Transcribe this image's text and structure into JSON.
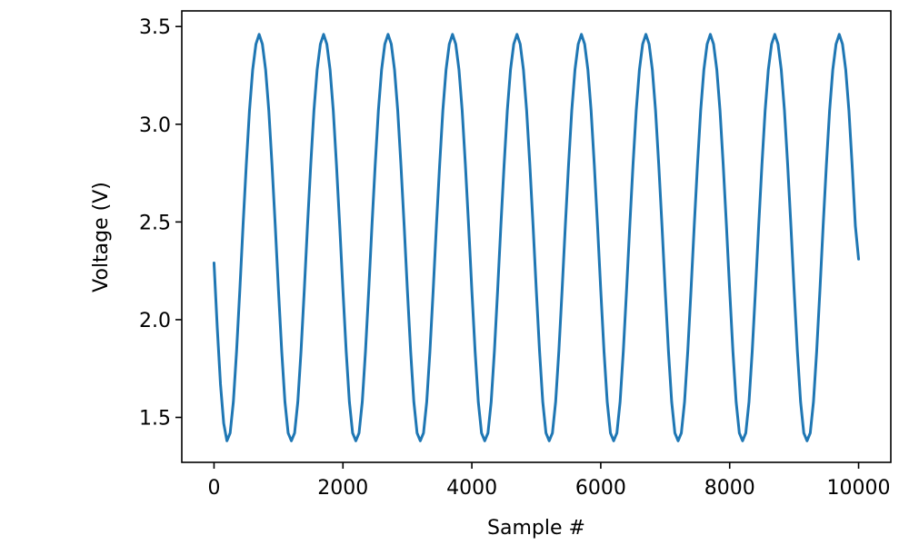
{
  "chart_data": {
    "type": "line",
    "title": "",
    "xlabel": "Sample #",
    "ylabel": "Voltage (V)",
    "xlim": [
      -500,
      10500
    ],
    "ylim": [
      1.27,
      3.58
    ],
    "x_ticks": [
      0,
      2000,
      4000,
      6000,
      8000,
      10000
    ],
    "x_tick_labels": [
      "0",
      "2000",
      "4000",
      "6000",
      "8000",
      "10000"
    ],
    "y_ticks": [
      1.5,
      2.0,
      2.5,
      3.0,
      3.5
    ],
    "y_tick_labels": [
      "1.5",
      "2.0",
      "2.5",
      "3.0",
      "3.5"
    ],
    "grid": false,
    "legend": "none",
    "series": [
      {
        "color": "#1f77b4",
        "x": [
          0,
          50,
          100,
          150,
          200,
          250,
          300,
          350,
          400,
          450,
          500,
          550,
          600,
          650,
          700,
          750,
          800,
          850,
          900,
          950,
          1000,
          1050,
          1100,
          1150,
          1200,
          1250,
          1300,
          1350,
          1400,
          1450,
          1500,
          1550,
          1600,
          1650,
          1700,
          1750,
          1800,
          1850,
          1900,
          1950,
          2000,
          2050,
          2100,
          2150,
          2200,
          2250,
          2300,
          2350,
          2400,
          2450,
          2500,
          2550,
          2600,
          2650,
          2700,
          2750,
          2800,
          2850,
          2900,
          2950,
          3000,
          3050,
          3100,
          3150,
          3200,
          3250,
          3300,
          3350,
          3400,
          3450,
          3500,
          3550,
          3600,
          3650,
          3700,
          3750,
          3800,
          3850,
          3900,
          3950,
          4000,
          4050,
          4100,
          4150,
          4200,
          4250,
          4300,
          4350,
          4400,
          4450,
          4500,
          4550,
          4600,
          4650,
          4700,
          4750,
          4800,
          4850,
          4900,
          4950,
          5000,
          5050,
          5100,
          5150,
          5200,
          5250,
          5300,
          5350,
          5400,
          5450,
          5500,
          5550,
          5600,
          5650,
          5700,
          5750,
          5800,
          5850,
          5900,
          5950,
          6000,
          6050,
          6100,
          6150,
          6200,
          6250,
          6300,
          6350,
          6400,
          6450,
          6500,
          6550,
          6600,
          6650,
          6700,
          6750,
          6800,
          6850,
          6900,
          6950,
          7000,
          7050,
          7100,
          7150,
          7200,
          7250,
          7300,
          7350,
          7400,
          7450,
          7500,
          7550,
          7600,
          7650,
          7700,
          7750,
          7800,
          7850,
          7900,
          7950,
          8000,
          8050,
          8100,
          8150,
          8200,
          8250,
          8300,
          8350,
          8400,
          8450,
          8500,
          8550,
          8600,
          8650,
          8700,
          8750,
          8800,
          8850,
          8900,
          8950,
          9000,
          9050,
          9100,
          9150,
          9200,
          9250,
          9300,
          9350,
          9400,
          9450,
          9500,
          9550,
          9600,
          9650,
          9700,
          9750,
          9800,
          9850,
          9900,
          9950,
          10000
        ],
        "values": [
          2.29,
          1.96,
          1.67,
          1.47,
          1.38,
          1.42,
          1.58,
          1.84,
          2.15,
          2.48,
          2.79,
          3.07,
          3.28,
          3.41,
          3.46,
          3.41,
          3.28,
          3.07,
          2.79,
          2.48,
          2.15,
          1.84,
          1.58,
          1.42,
          1.38,
          1.42,
          1.58,
          1.84,
          2.15,
          2.48,
          2.79,
          3.07,
          3.28,
          3.41,
          3.46,
          3.41,
          3.28,
          3.07,
          2.79,
          2.48,
          2.15,
          1.84,
          1.58,
          1.42,
          1.38,
          1.42,
          1.58,
          1.84,
          2.15,
          2.48,
          2.79,
          3.07,
          3.28,
          3.41,
          3.46,
          3.41,
          3.28,
          3.07,
          2.79,
          2.48,
          2.15,
          1.84,
          1.58,
          1.42,
          1.38,
          1.42,
          1.58,
          1.84,
          2.15,
          2.48,
          2.79,
          3.07,
          3.28,
          3.41,
          3.46,
          3.41,
          3.28,
          3.07,
          2.79,
          2.48,
          2.15,
          1.84,
          1.58,
          1.42,
          1.38,
          1.42,
          1.58,
          1.84,
          2.15,
          2.48,
          2.79,
          3.07,
          3.28,
          3.41,
          3.46,
          3.41,
          3.28,
          3.07,
          2.79,
          2.48,
          2.15,
          1.84,
          1.58,
          1.42,
          1.38,
          1.42,
          1.58,
          1.84,
          2.15,
          2.48,
          2.79,
          3.07,
          3.28,
          3.41,
          3.46,
          3.41,
          3.28,
          3.07,
          2.79,
          2.48,
          2.15,
          1.84,
          1.58,
          1.42,
          1.38,
          1.42,
          1.58,
          1.84,
          2.15,
          2.48,
          2.79,
          3.07,
          3.28,
          3.41,
          3.46,
          3.41,
          3.28,
          3.07,
          2.79,
          2.48,
          2.15,
          1.84,
          1.58,
          1.42,
          1.38,
          1.42,
          1.58,
          1.84,
          2.15,
          2.48,
          2.79,
          3.07,
          3.28,
          3.41,
          3.46,
          3.41,
          3.28,
          3.07,
          2.79,
          2.48,
          2.15,
          1.84,
          1.58,
          1.42,
          1.38,
          1.42,
          1.58,
          1.84,
          2.15,
          2.48,
          2.79,
          3.07,
          3.28,
          3.41,
          3.46,
          3.41,
          3.28,
          3.07,
          2.79,
          2.48,
          2.15,
          1.84,
          1.58,
          1.42,
          1.38,
          1.42,
          1.58,
          1.84,
          2.15,
          2.48,
          2.79,
          3.07,
          3.28,
          3.41,
          3.46,
          3.41,
          3.28,
          3.07,
          2.79,
          2.48,
          2.31
        ]
      }
    ]
  }
}
